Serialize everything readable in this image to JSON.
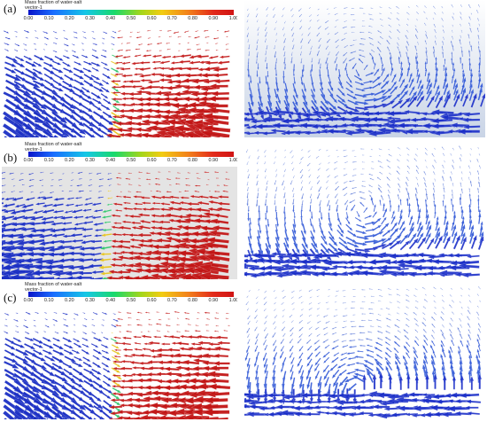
{
  "legend": {
    "title_line1": "Mass fraction of water-salt",
    "title_line2": "vector-1",
    "ticks": [
      "0.00",
      "0.10",
      "0.20",
      "0.30",
      "0.40",
      "0.50",
      "0.60",
      "0.70",
      "0.80",
      "0.90",
      "1.00"
    ],
    "colormap": [
      "#0a14c8",
      "#1a6cff",
      "#15c7e6",
      "#19d96a",
      "#a5d61a",
      "#f2cc12",
      "#f2801a",
      "#e22a1a",
      "#d01414"
    ]
  },
  "panels": [
    {
      "label": "(a)"
    },
    {
      "label": "(b)"
    },
    {
      "label": "(c)"
    }
  ],
  "colors": {
    "low_fraction": "#1b2fc4",
    "high_fraction": "#c21616",
    "mid_fraction": "#e6c31a"
  }
}
